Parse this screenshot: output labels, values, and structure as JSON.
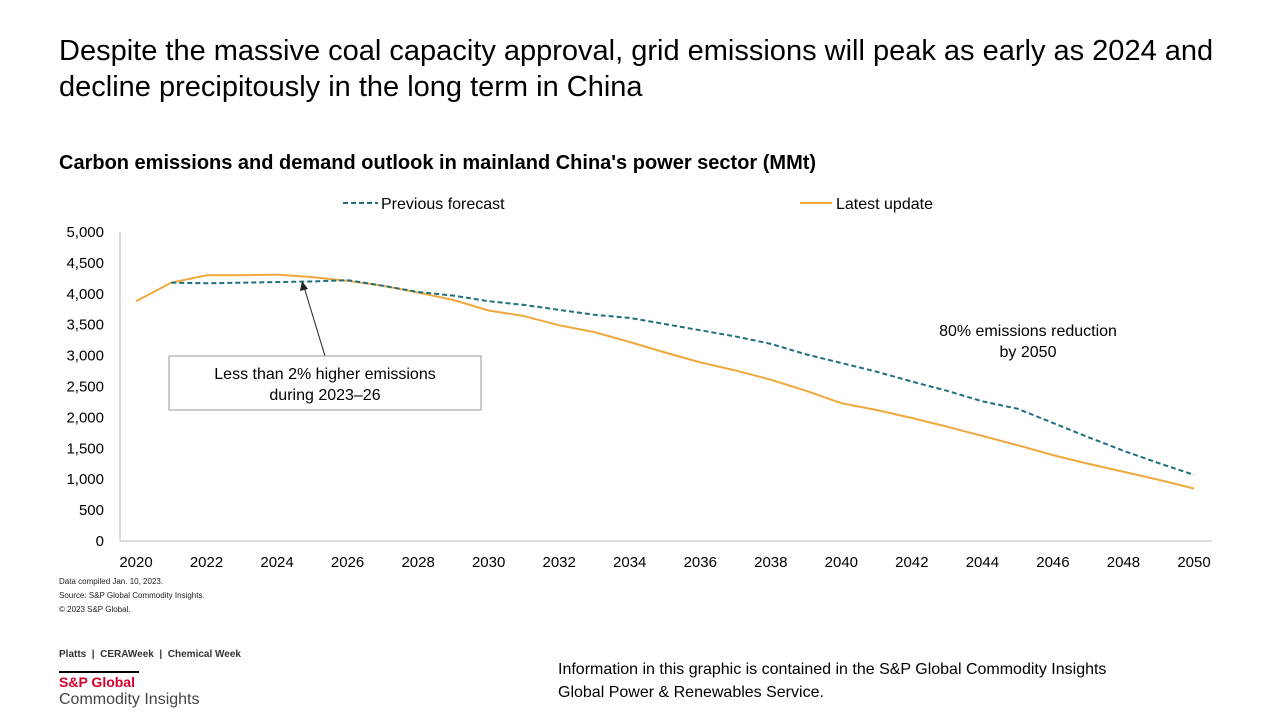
{
  "headline": "Despite the massive coal capacity approval, grid emissions will peak as early as 2024 and decline precipitously in the long term in China",
  "chart_data": {
    "type": "line",
    "title": "Carbon emissions and demand outlook in mainland China's power sector (MMt)",
    "xlabel": "",
    "ylabel": "",
    "xlim": [
      2020,
      2050
    ],
    "ylim": [
      0,
      5000
    ],
    "x_ticks": [
      "2020",
      "2022",
      "2024",
      "2026",
      "2028",
      "2030",
      "2032",
      "2034",
      "2036",
      "2038",
      "2040",
      "2042",
      "2044",
      "2046",
      "2048",
      "2050"
    ],
    "y_ticks": [
      "0",
      "500",
      "1,000",
      "1,500",
      "2,000",
      "2,500",
      "3,000",
      "3,500",
      "4,000",
      "4,500",
      "5,000"
    ],
    "legend_position": "top",
    "series": [
      {
        "name": "Previous forecast",
        "color": "#1f6f7f",
        "style": "dashed",
        "x": [
          2021,
          2022,
          2023,
          2024,
          2025,
          2026,
          2027,
          2028,
          2029,
          2030,
          2031,
          2032,
          2033,
          2034,
          2035,
          2036,
          2037,
          2038,
          2039,
          2040,
          2041,
          2042,
          2043,
          2044,
          2045,
          2046,
          2047,
          2048,
          2049,
          2050
        ],
        "values": [
          4180,
          4170,
          4180,
          4190,
          4200,
          4220,
          4130,
          4030,
          3970,
          3880,
          3820,
          3740,
          3660,
          3610,
          3510,
          3410,
          3310,
          3190,
          3020,
          2880,
          2740,
          2580,
          2430,
          2260,
          2140,
          1910,
          1680,
          1460,
          1260,
          1070
        ]
      },
      {
        "name": "Latest update",
        "color": "#f0a83c",
        "style": "solid",
        "x": [
          2020,
          2021,
          2022,
          2023,
          2024,
          2025,
          2026,
          2027,
          2028,
          2029,
          2030,
          2031,
          2032,
          2033,
          2034,
          2035,
          2036,
          2037,
          2038,
          2039,
          2040,
          2041,
          2042,
          2043,
          2044,
          2045,
          2046,
          2047,
          2048,
          2049,
          2050
        ],
        "values": [
          3880,
          4180,
          4300,
          4300,
          4310,
          4270,
          4210,
          4130,
          4020,
          3900,
          3730,
          3640,
          3490,
          3380,
          3220,
          3050,
          2890,
          2760,
          2610,
          2430,
          2230,
          2120,
          1990,
          1850,
          1700,
          1550,
          1390,
          1250,
          1120,
          990,
          850
        ]
      }
    ],
    "annotations": {
      "box": "Less than 2% higher emissions during 2023–26",
      "box_line1": "Less than 2% higher emissions",
      "box_line2": "during 2023–26",
      "text_line1": "80% emissions  reduction",
      "text_line2": "by 2050"
    }
  },
  "footnotes": [
    "Data compiled Jan. 10, 2023.",
    "Source: S&P Global Commodity Insights.",
    "© 2023 S&P Global."
  ],
  "brands": "Platts  |  CERAWeek  |  Chemical Week",
  "logo": {
    "line1": "S&P Global",
    "line2": "Commodity Insights"
  },
  "info_line1": "Information in this graphic is contained in the S&P Global Commodity Insights",
  "info_line2": "Global Power & Renewables Service."
}
